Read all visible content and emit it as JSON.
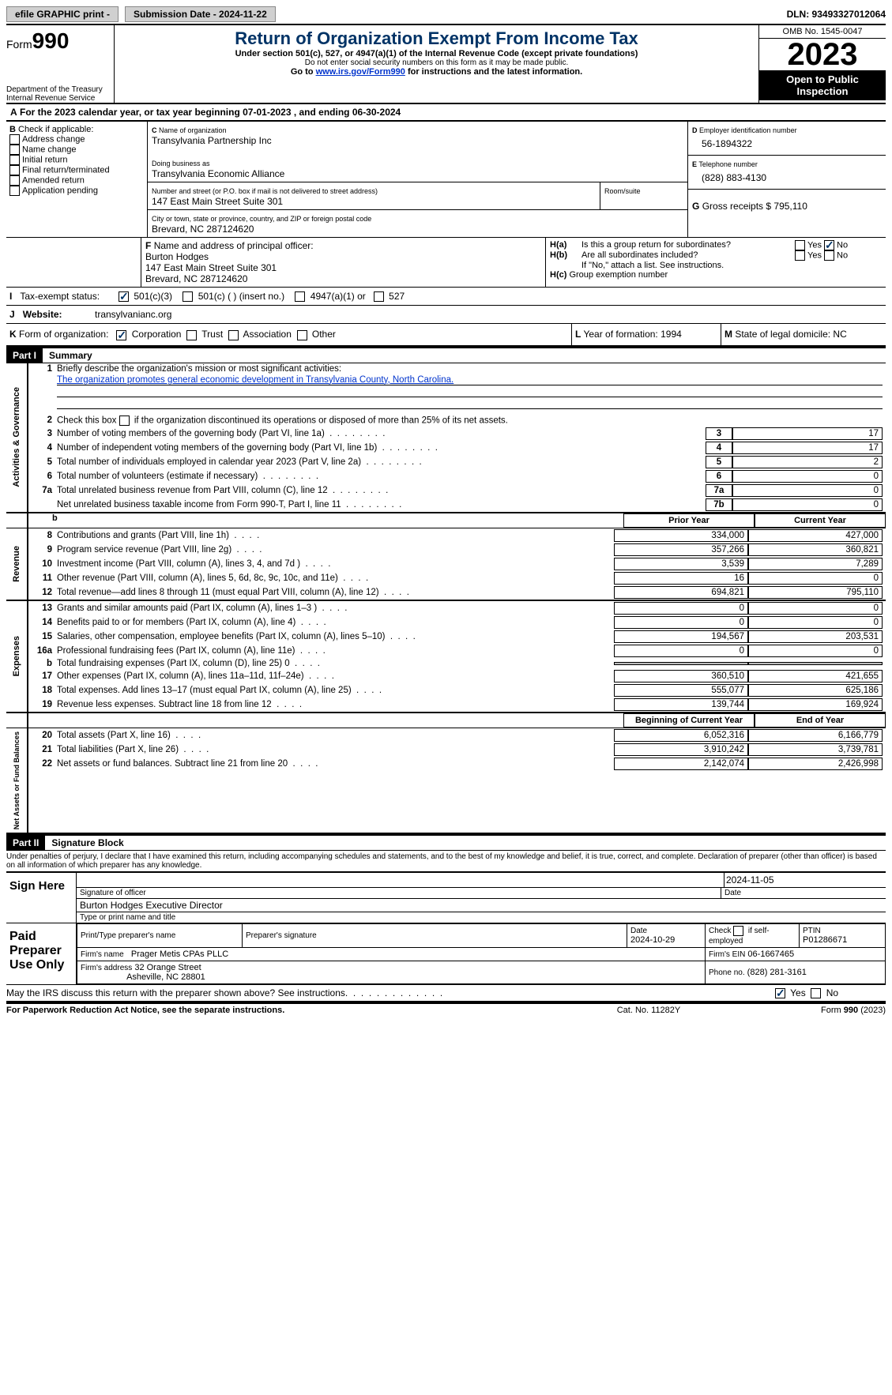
{
  "topbar": {
    "efile": "efile GRAPHIC print -",
    "submission_label": "Submission Date - 2024-11-22",
    "dln": "DLN: 93493327012064"
  },
  "header": {
    "form_prefix": "Form",
    "form_num": "990",
    "title": "Return of Organization Exempt From Income Tax",
    "line1": "Under section 501(c), 527, or 4947(a)(1) of the Internal Revenue Code (except private foundations)",
    "line2": "Do not enter social security numbers on this form as it may be made public.",
    "line3_pre": "Go to ",
    "line3_link": "www.irs.gov/Form990",
    "line3_post": " for instructions and the latest information.",
    "dept": "Department of the Treasury\nInternal Revenue Service",
    "omb": "OMB No. 1545-0047",
    "year": "2023",
    "open": "Open to Public Inspection"
  },
  "A": {
    "text": "For the 2023 calendar year, or tax year beginning 07-01-2023    , and ending 06-30-2024"
  },
  "B": {
    "title": "Check if applicable:",
    "opts": [
      "Address change",
      "Name change",
      "Initial return",
      "Final return/terminated",
      "Amended return",
      "Application pending"
    ]
  },
  "C": {
    "name_label": "Name of organization",
    "name": "Transylvania Partnership Inc",
    "dba_label": "Doing business as",
    "dba": "Transylvania Economic Alliance",
    "addr_label": "Number and street (or P.O. box if mail is not delivered to street address)",
    "room_label": "Room/suite",
    "addr": "147 East Main Street Suite 301",
    "city_label": "City or town, state or province, country, and ZIP or foreign postal code",
    "city": "Brevard, NC  287124620"
  },
  "D": {
    "label": "Employer identification number",
    "val": "56-1894322"
  },
  "E": {
    "label": "Telephone number",
    "val": "(828) 883-4130"
  },
  "G": {
    "label": "Gross receipts $",
    "val": "795,110"
  },
  "F": {
    "label": "Name and address of principal officer:",
    "name": "Burton Hodges",
    "addr1": "147 East Main Street Suite 301",
    "addr2": "Brevard, NC  287124620"
  },
  "H": {
    "a": "Is this a group return for subordinates?",
    "a_no": true,
    "b": "Are all subordinates included?",
    "b_note": "If \"No,\" attach a list. See instructions.",
    "c": "Group exemption number"
  },
  "I": {
    "label": "Tax-exempt status:",
    "c3": "501(c)(3)",
    "c": "501(c) (  ) (insert no.)",
    "a1": "4947(a)(1) or",
    "527": "527"
  },
  "J": {
    "label": "Website:",
    "val": "transylvanianc.org"
  },
  "K": {
    "label": "Form of organization:",
    "opts": [
      "Corporation",
      "Trust",
      "Association",
      "Other"
    ]
  },
  "L": {
    "label": "Year of formation:",
    "val": "1994"
  },
  "M": {
    "label": "State of legal domicile:",
    "val": "NC"
  },
  "part1": {
    "hdr": "Part I",
    "title": "Summary"
  },
  "summary": {
    "l1": "Briefly describe the organization's mission or most significant activities:",
    "l1v": "The organization promotes general economic development in Transylvania County, North Carolina.",
    "l2": "Check this box        if the organization discontinued its operations or disposed of more than 25% of its net assets.",
    "rows_gov": [
      {
        "n": "3",
        "t": "Number of voting members of the governing body (Part VI, line 1a)",
        "box": "3",
        "v": "17"
      },
      {
        "n": "4",
        "t": "Number of independent voting members of the governing body (Part VI, line 1b)",
        "box": "4",
        "v": "17"
      },
      {
        "n": "5",
        "t": "Total number of individuals employed in calendar year 2023 (Part V, line 2a)",
        "box": "5",
        "v": "2"
      },
      {
        "n": "6",
        "t": "Total number of volunteers (estimate if necessary)",
        "box": "6",
        "v": "0"
      },
      {
        "n": "7a",
        "t": "Total unrelated business revenue from Part VIII, column (C), line 12",
        "box": "7a",
        "v": "0"
      },
      {
        "n": "",
        "t": "Net unrelated business taxable income from Form 990-T, Part I, line 11",
        "box": "7b",
        "v": "0"
      }
    ],
    "col_prior": "Prior Year",
    "col_curr": "Current Year",
    "rev": [
      {
        "n": "8",
        "t": "Contributions and grants (Part VIII, line 1h)",
        "p": "334,000",
        "c": "427,000"
      },
      {
        "n": "9",
        "t": "Program service revenue (Part VIII, line 2g)",
        "p": "357,266",
        "c": "360,821"
      },
      {
        "n": "10",
        "t": "Investment income (Part VIII, column (A), lines 3, 4, and 7d )",
        "p": "3,539",
        "c": "7,289"
      },
      {
        "n": "11",
        "t": "Other revenue (Part VIII, column (A), lines 5, 6d, 8c, 9c, 10c, and 11e)",
        "p": "16",
        "c": "0"
      },
      {
        "n": "12",
        "t": "Total revenue—add lines 8 through 11 (must equal Part VIII, column (A), line 12)",
        "p": "694,821",
        "c": "795,110"
      }
    ],
    "exp": [
      {
        "n": "13",
        "t": "Grants and similar amounts paid (Part IX, column (A), lines 1–3 )",
        "p": "0",
        "c": "0"
      },
      {
        "n": "14",
        "t": "Benefits paid to or for members (Part IX, column (A), line 4)",
        "p": "0",
        "c": "0"
      },
      {
        "n": "15",
        "t": "Salaries, other compensation, employee benefits (Part IX, column (A), lines 5–10)",
        "p": "194,567",
        "c": "203,531"
      },
      {
        "n": "16a",
        "t": "Professional fundraising fees (Part IX, column (A), line 11e)",
        "p": "0",
        "c": "0"
      },
      {
        "n": "b",
        "t": "Total fundraising expenses (Part IX, column (D), line 25) 0",
        "p": "",
        "c": "",
        "grey": true
      },
      {
        "n": "17",
        "t": "Other expenses (Part IX, column (A), lines 11a–11d, 11f–24e)",
        "p": "360,510",
        "c": "421,655"
      },
      {
        "n": "18",
        "t": "Total expenses. Add lines 13–17 (must equal Part IX, column (A), line 25)",
        "p": "555,077",
        "c": "625,186"
      },
      {
        "n": "19",
        "t": "Revenue less expenses. Subtract line 18 from line 12",
        "p": "139,744",
        "c": "169,924"
      }
    ],
    "col_beg": "Beginning of Current Year",
    "col_end": "End of Year",
    "net": [
      {
        "n": "20",
        "t": "Total assets (Part X, line 16)",
        "p": "6,052,316",
        "c": "6,166,779"
      },
      {
        "n": "21",
        "t": "Total liabilities (Part X, line 26)",
        "p": "3,910,242",
        "c": "3,739,781"
      },
      {
        "n": "22",
        "t": "Net assets or fund balances. Subtract line 21 from line 20",
        "p": "2,142,074",
        "c": "2,426,998"
      }
    ],
    "side_gov": "Activities & Governance",
    "side_rev": "Revenue",
    "side_exp": "Expenses",
    "side_net": "Net Assets or Fund Balances"
  },
  "part2": {
    "hdr": "Part II",
    "title": "Signature Block"
  },
  "sig": {
    "decl": "Under penalties of perjury, I declare that I have examined this return, including accompanying schedules and statements, and to the best of my knowledge and belief, it is true, correct, and complete. Declaration of preparer (other than officer) is based on all information of which preparer has any knowledge.",
    "sign_here": "Sign Here",
    "date1": "2024-11-05",
    "sig_officer": "Signature of officer",
    "sig_date": "Date",
    "officer": "Burton Hodges  Executive Director",
    "type_name": "Type or print name and title",
    "paid": "Paid Preparer Use Only",
    "p_name": "Print/Type preparer's name",
    "p_sig": "Preparer's signature",
    "p_date": "Date",
    "p_dateval": "2024-10-29",
    "p_check": "Check         if self-employed",
    "p_ptin": "PTIN",
    "p_ptinval": "P01286671",
    "firm_name_l": "Firm's name",
    "firm_name": "Prager Metis CPAs PLLC",
    "firm_ein_l": "Firm's EIN",
    "firm_ein": "06-1667465",
    "firm_addr_l": "Firm's address",
    "firm_addr1": "32 Orange Street",
    "firm_addr2": "Asheville, NC  28801",
    "phone_l": "Phone no.",
    "phone": "(828) 281-3161",
    "may": "May the IRS discuss this return with the preparer shown above? See instructions."
  },
  "foot": {
    "left": "For Paperwork Reduction Act Notice, see the separate instructions.",
    "mid": "Cat. No. 11282Y",
    "right": "Form 990 (2023)"
  }
}
